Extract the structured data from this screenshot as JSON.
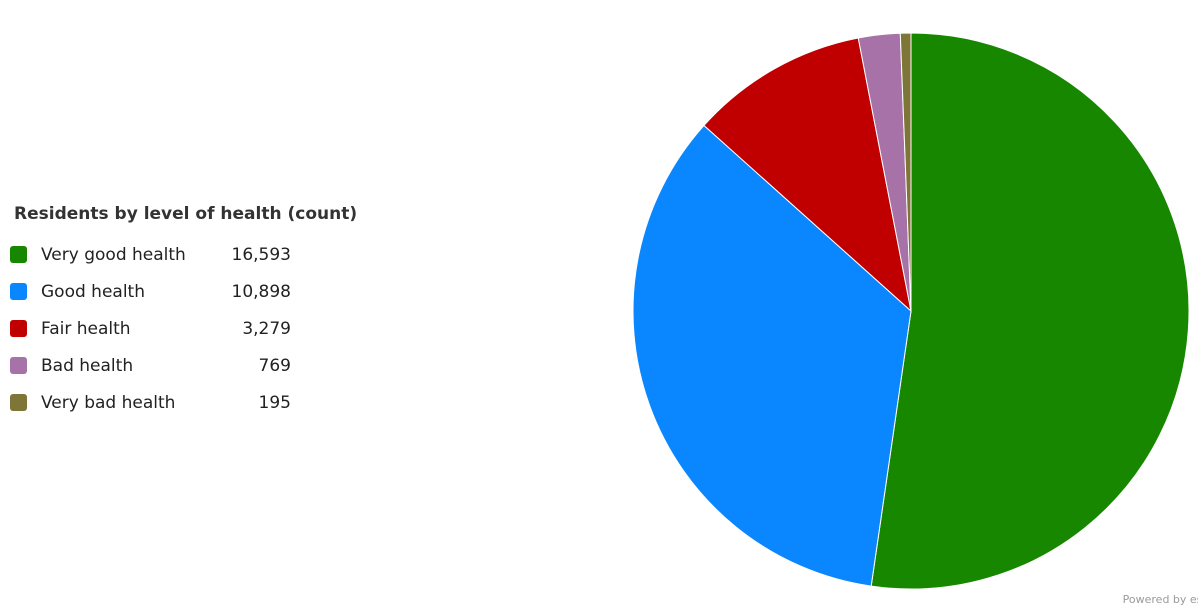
{
  "chart_data": {
    "type": "pie",
    "title": "Residents by level of health (count)",
    "legend_position": "left",
    "series": [
      {
        "name": "Very good health",
        "label": "16,593",
        "value": 16593,
        "color": "#178700"
      },
      {
        "name": "Good health",
        "label": "10,898",
        "value": 10898,
        "color": "#0a86ff"
      },
      {
        "name": "Fair health",
        "label": "3,279",
        "value": 3279,
        "color": "#c00000"
      },
      {
        "name": "Bad health",
        "label": "769",
        "value": 769,
        "color": "#a672a8"
      },
      {
        "name": "Very bad health",
        "label": "195",
        "value": 195,
        "color": "#7e7636"
      }
    ]
  },
  "footer": {
    "powered_by": "Powered by esri"
  }
}
